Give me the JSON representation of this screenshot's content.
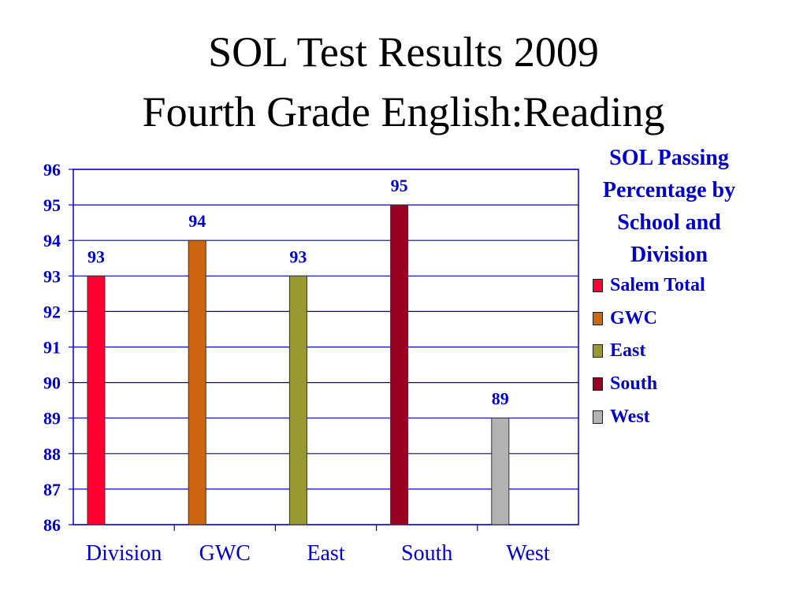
{
  "title": {
    "line1": "SOL Test Results 2009",
    "line2": "Fourth Grade English:Reading"
  },
  "legend": {
    "title": "SOL Passing Percentage by School and Division",
    "items": [
      {
        "label": "Salem Total",
        "color": "#ff0033"
      },
      {
        "label": "GWC",
        "color": "#cc6611"
      },
      {
        "label": "East",
        "color": "#999933"
      },
      {
        "label": "South",
        "color": "#990022"
      },
      {
        "label": "West",
        "color": "#b3b3b3"
      }
    ]
  },
  "chart_data": {
    "type": "bar",
    "categories": [
      "Division",
      "GWC",
      "East",
      "South",
      "West"
    ],
    "series": [
      {
        "name": "Salem Total",
        "color": "#ff0033",
        "values": [
          93,
          null,
          null,
          null,
          null
        ]
      },
      {
        "name": "GWC",
        "color": "#cc6611",
        "values": [
          null,
          94,
          null,
          null,
          null
        ]
      },
      {
        "name": "East",
        "color": "#999933",
        "values": [
          null,
          null,
          93,
          null,
          null
        ]
      },
      {
        "name": "South",
        "color": "#990022",
        "values": [
          null,
          null,
          null,
          95,
          null
        ]
      },
      {
        "name": "West",
        "color": "#b3b3b3",
        "values": [
          null,
          null,
          null,
          null,
          89
        ]
      }
    ],
    "ylim": [
      86,
      96
    ],
    "yticks": [
      86,
      87,
      88,
      89,
      90,
      91,
      92,
      93,
      94,
      95,
      96
    ],
    "grid": true,
    "data_labels": true,
    "legend_position": "right",
    "label_color": "#0000cc"
  }
}
